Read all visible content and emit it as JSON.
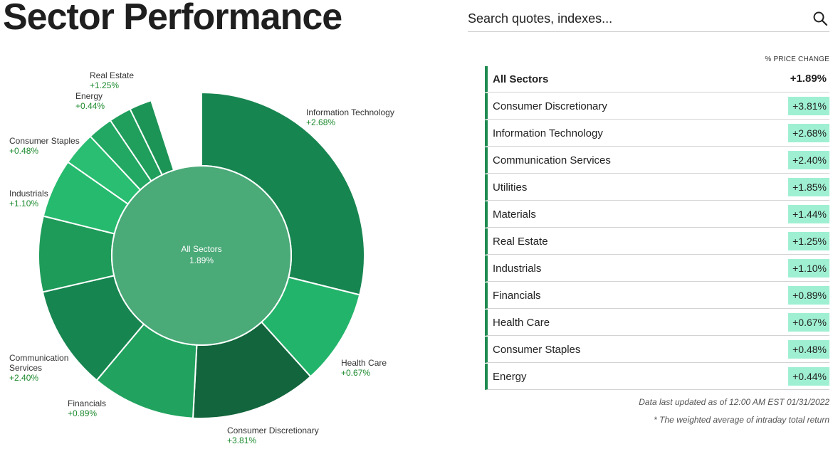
{
  "page": {
    "title": "Sector Performance"
  },
  "search": {
    "placeholder": "Search quotes, indexes...",
    "icon": "search-icon"
  },
  "chart_data": {
    "type": "pie",
    "center": {
      "label": "All Sectors",
      "value": "1.89%"
    },
    "slices": [
      {
        "name": "Information Technology",
        "value": "+2.68%",
        "color": "#178550"
      },
      {
        "name": "Health Care",
        "value": "+0.67%",
        "color": "#23b46b"
      },
      {
        "name": "Consumer Discretionary",
        "value": "+3.81%",
        "color": "#12653c"
      },
      {
        "name": "Financials",
        "value": "+0.89%",
        "color": "#21a35f"
      },
      {
        "name": "Communication Services",
        "value": "+2.40%",
        "color": "#178550"
      },
      {
        "name": "Industrials",
        "value": "+1.10%",
        "color": "#1e9b59"
      },
      {
        "name": "Consumer Staples",
        "value": "+0.48%",
        "color": "#26ba6e"
      },
      {
        "name": "Energy",
        "value": "+0.44%",
        "color": "#29be71"
      },
      {
        "name": "",
        "value": "",
        "color": "#22a862"
      },
      {
        "name": "Real Estate",
        "value": "+1.25%",
        "color": "#1f9e5c"
      },
      {
        "name": "",
        "value": "",
        "color": "#1c9456"
      }
    ],
    "inner_color": "#4aaa78"
  },
  "table": {
    "header": "% PRICE CHANGE",
    "rows": [
      {
        "name": "All Sectors",
        "value": "+1.89%"
      },
      {
        "name": "Consumer Discretionary",
        "value": "+3.81%"
      },
      {
        "name": "Information Technology",
        "value": "+2.68%"
      },
      {
        "name": "Communication Services",
        "value": "+2.40%"
      },
      {
        "name": "Utilities",
        "value": "+1.85%"
      },
      {
        "name": "Materials",
        "value": "+1.44%"
      },
      {
        "name": "Real Estate",
        "value": "+1.25%"
      },
      {
        "name": "Industrials",
        "value": "+1.10%"
      },
      {
        "name": "Financials",
        "value": "+0.89%"
      },
      {
        "name": "Health Care",
        "value": "+0.67%"
      },
      {
        "name": "Consumer Staples",
        "value": "+0.48%"
      },
      {
        "name": "Energy",
        "value": "+0.44%"
      }
    ]
  },
  "footer": {
    "updated": "Data last updated as of 12:00 AM EST 01/31/2022",
    "note": "* The weighted average of intraday total return"
  }
}
